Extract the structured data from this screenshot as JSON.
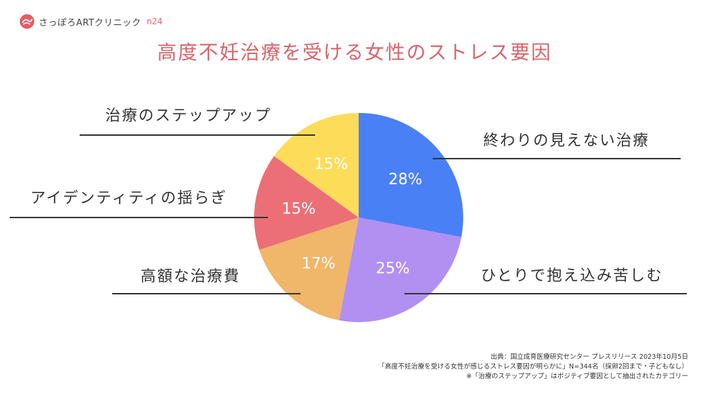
{
  "header": {
    "brand_name": "さっぽろARTクリニック",
    "brand_tag": "n24",
    "brand_color": "#d9646a"
  },
  "title": "高度不妊治療を受ける女性のストレス要因",
  "chart_data": {
    "type": "pie",
    "title": "高度不妊治療を受ける女性のストレス要因",
    "slices": [
      {
        "label": "終わりの見えない治療",
        "value": 28,
        "display": "28%",
        "color": "#4a80f5"
      },
      {
        "label": "ひとりで抱え込み苦しむ",
        "value": 25,
        "display": "25%",
        "color": "#b190f2"
      },
      {
        "label": "高額な治療費",
        "value": 17,
        "display": "17%",
        "color": "#f0b66a"
      },
      {
        "label": "アイデンティティの揺らぎ",
        "value": 15,
        "display": "15%",
        "color": "#ec6f77"
      },
      {
        "label": "治療のステップアップ",
        "value": 15,
        "display": "15%",
        "color": "#fddc5a"
      }
    ],
    "start": "12 o'clock",
    "direction": "clockwise"
  },
  "source": {
    "line1": "出典：国立成育医療研究センター プレスリリース 2023年10月5日",
    "line2": "「高度不妊治療を受ける女性が感じるストレス要因が明らかに」N=344名（採卵2回まで・子どもなし）",
    "line3": "※「治療のステップアップ」はポジティブ要因として抽出されたカテゴリー"
  }
}
